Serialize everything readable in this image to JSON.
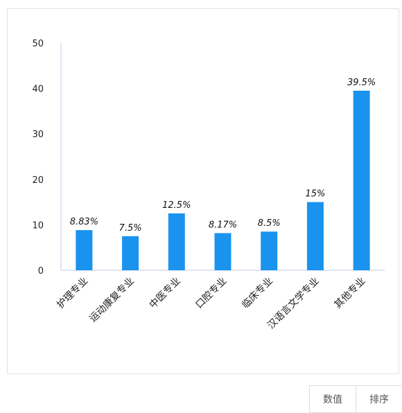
{
  "chart_data": {
    "type": "bar",
    "categories": [
      "护理专业",
      "运动康复专业",
      "中医专业",
      "口腔专业",
      "临床专业",
      "汉语言文学专业",
      "其他专业"
    ],
    "values": [
      8.83,
      7.5,
      12.5,
      8.17,
      8.5,
      15,
      39.5
    ],
    "data_labels": [
      "8.83%",
      "7.5%",
      "12.5%",
      "8.17%",
      "8.5%",
      "15%",
      "39.5%"
    ],
    "ylim": [
      0,
      50
    ],
    "yticks": [
      0,
      10,
      20,
      30,
      40,
      50
    ],
    "bar_color": "#1a93ee",
    "grid": false
  },
  "toolbar": {
    "value_label": "数值",
    "sort_label": "排序"
  }
}
